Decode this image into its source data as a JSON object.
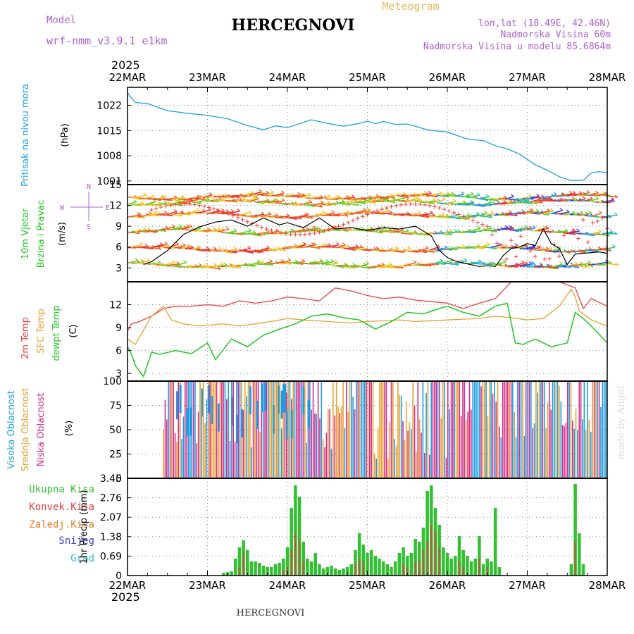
{
  "header": {
    "model_label": "Model",
    "model_name": "wrf-nmm_v3.9.1 e1km",
    "title": "HERCEGNOVI",
    "subtitle": "Meteogram",
    "lonlat": "lon,lat (18.49E, 42.46N)",
    "elevation": "Nadmorska Visina 60m",
    "model_elevation": "Nadmorska Visina u modelu 85.6864m",
    "watermark": "made by Angel",
    "footer": "HERCEGNOVI"
  },
  "time_axis": {
    "year": "2025",
    "labels": [
      "22MAR",
      "23MAR",
      "24MAR",
      "25MAR",
      "26MAR",
      "27MAR",
      "28MAR"
    ]
  },
  "colors": {
    "pressure": "#1ea0e6",
    "t2m": "#f04040",
    "sfc": "#e8a030",
    "dewpt": "#22c822",
    "wind_speed": "#000000",
    "wind_dir": "#f04040",
    "cloud_high": "#1e9be0",
    "cloud_mid": "#e8a030",
    "cloud_low": "#d0308a",
    "precip_total": "#33c033",
    "precip_conv": "#e04040",
    "precip_snow": "#4040e0",
    "precip_hail": "#30c0c0"
  },
  "chart_data": [
    {
      "type": "line",
      "panel": "pressure",
      "ylabel": [
        "Pritisak na nivou mora",
        "(hPa)"
      ],
      "yticks": [
        1001,
        1008,
        1015,
        1022
      ],
      "ylim": [
        1000,
        1027
      ],
      "series": [
        {
          "x": [
            0,
            0.05,
            0.1,
            0.25,
            0.5,
            0.75,
            1.0,
            1.25,
            1.5,
            1.7,
            1.85,
            2.0,
            2.15,
            2.3,
            2.5,
            2.7,
            2.9,
            3.0,
            3.1,
            3.2,
            3.35,
            3.5,
            3.6,
            3.75,
            3.9,
            4.0,
            4.1,
            4.2,
            4.3,
            4.45,
            4.6,
            4.75,
            4.9,
            5.0,
            5.1,
            5.25,
            5.4,
            5.55,
            5.7,
            5.8,
            5.9,
            6.0
          ],
          "values": [
            1025.5,
            1024,
            1022.8,
            1022.5,
            1020.5,
            1019.8,
            1019.2,
            1018.3,
            1016.4,
            1015.2,
            1016.3,
            1015.8,
            1016.9,
            1018,
            1017,
            1016.2,
            1017,
            1017.6,
            1016.9,
            1017.5,
            1016.7,
            1016.8,
            1016.2,
            1015.2,
            1014.8,
            1014.6,
            1013.8,
            1013,
            1012.5,
            1012.2,
            1010.8,
            1009.9,
            1008.5,
            1007,
            1005.5,
            1004,
            1002.2,
            1001.1,
            1001.2,
            1003.2,
            1003.6,
            1003.3
          ]
        }
      ]
    },
    {
      "type": "line",
      "panel": "wind",
      "ylabel": [
        "10m Vjetar",
        "Brzina i Pravac",
        "(m/s)"
      ],
      "direction_legend": [
        "N",
        "E",
        "S",
        "W"
      ],
      "yticks": [
        3,
        6,
        9,
        12,
        15
      ],
      "ylim": [
        1,
        15
      ],
      "series": [
        {
          "name": "speed",
          "x": [
            0.2,
            0.3,
            0.5,
            0.7,
            0.9,
            1.1,
            1.3,
            1.5,
            1.7,
            1.9,
            2.0,
            2.2,
            2.4,
            2.6,
            2.8,
            3.0,
            3.2,
            3.4,
            3.6,
            3.8,
            3.9,
            4.0,
            4.1,
            4.2,
            4.4,
            4.5,
            4.6,
            4.7,
            4.8,
            4.9,
            5.0,
            5.1,
            5.2,
            5.3,
            5.4,
            5.5,
            5.6,
            5.7,
            5.8,
            5.9,
            6.0
          ],
          "values": [
            3.5,
            3.9,
            5.5,
            7.8,
            8.9,
            9.6,
            9.9,
            9.0,
            10.2,
            9.2,
            9.5,
            8.8,
            10.2,
            8.6,
            8.8,
            8.4,
            8.8,
            8.6,
            9.0,
            7.6,
            5.5,
            4.5,
            4.0,
            3.7,
            3.2,
            3.3,
            3.2,
            4.8,
            5.8,
            6.0,
            6.5,
            6.2,
            8.6,
            6.5,
            5.8,
            3.5,
            5.0,
            5.1,
            5.2,
            5.3,
            5.1
          ]
        }
      ]
    },
    {
      "type": "line",
      "panel": "temperature",
      "ylabel": [
        "2m Temp",
        "SFC Temp",
        "dewpt Temp",
        "(C)"
      ],
      "yticks": [
        3,
        6,
        9,
        12
      ],
      "ylim": [
        2,
        15
      ],
      "series": [
        {
          "name": "2m Temp",
          "x": [
            0,
            0.05,
            0.15,
            0.3,
            0.45,
            0.6,
            0.8,
            1.0,
            1.2,
            1.4,
            1.6,
            1.8,
            2.0,
            2.2,
            2.4,
            2.6,
            2.8,
            3.0,
            3.2,
            3.4,
            3.6,
            3.8,
            4.0,
            4.2,
            4.4,
            4.6,
            4.8,
            5.0,
            5.2,
            5.4,
            5.6,
            5.7,
            5.8,
            5.9,
            6.0
          ],
          "values": [
            8.5,
            9.5,
            9.8,
            10.5,
            11.5,
            11.8,
            11.8,
            12.0,
            11.8,
            12.5,
            12.2,
            12.5,
            13.0,
            12.8,
            12.5,
            14.2,
            13.8,
            13.2,
            12.8,
            13.0,
            12.6,
            12.4,
            12.2,
            11.5,
            12.2,
            12.8,
            15.0,
            15.0,
            15.0,
            15.0,
            14.2,
            11.5,
            12.8,
            12.3,
            11.8
          ]
        },
        {
          "name": "SFC Temp",
          "x": [
            0,
            0.1,
            0.3,
            0.45,
            0.55,
            0.7,
            0.9,
            1.2,
            1.4,
            1.6,
            1.8,
            2.0,
            2.2,
            2.5,
            2.8,
            3.0,
            3.2,
            3.4,
            3.6,
            3.8,
            4.0,
            4.2,
            4.4,
            4.6,
            4.8,
            5.0,
            5.2,
            5.4,
            5.55,
            5.6,
            5.65,
            5.8,
            6.0
          ],
          "values": [
            7.5,
            6.8,
            10.5,
            11.8,
            10.0,
            9.5,
            9.2,
            9.5,
            9.2,
            9.5,
            9.8,
            10.2,
            10.0,
            9.8,
            9.6,
            9.8,
            9.9,
            10.0,
            9.8,
            9.9,
            10.0,
            10.1,
            10.2,
            10.5,
            10.3,
            10.0,
            10.2,
            11.8,
            14.0,
            13.0,
            11.2,
            10.0,
            9.2
          ]
        },
        {
          "name": "dewpt Temp",
          "x": [
            0,
            0.05,
            0.1,
            0.2,
            0.3,
            0.4,
            0.6,
            0.8,
            1.0,
            1.1,
            1.3,
            1.5,
            1.7,
            1.9,
            2.1,
            2.3,
            2.5,
            2.7,
            2.9,
            3.1,
            3.3,
            3.5,
            3.7,
            3.9,
            4.0,
            4.2,
            4.4,
            4.6,
            4.75,
            4.85,
            4.95,
            5.1,
            5.3,
            5.5,
            5.6,
            5.7,
            5.8,
            6.0
          ],
          "values": [
            6.5,
            5.5,
            4.0,
            2.6,
            5.8,
            5.5,
            6.0,
            5.6,
            7.0,
            4.8,
            7.5,
            6.5,
            8.0,
            8.8,
            9.5,
            10.5,
            10.8,
            10.3,
            10.0,
            8.8,
            9.8,
            11.0,
            10.8,
            11.5,
            11.8,
            11.0,
            10.5,
            11.8,
            12.2,
            7.0,
            6.8,
            7.5,
            6.5,
            7.0,
            11.0,
            10.2,
            9.2,
            7.0
          ]
        }
      ]
    },
    {
      "type": "bar",
      "panel": "cloud",
      "ylabel": [
        "Visoka Oblacnost",
        "Srednja Oblacnost",
        "Niska Oblacnost",
        "(%)"
      ],
      "yticks": [
        0,
        25,
        50,
        75,
        100
      ],
      "ylim": [
        0,
        100
      ]
    },
    {
      "type": "bar",
      "panel": "precip",
      "ylabel": [
        "1hr Precip (mm)"
      ],
      "legend": [
        "Ukupna Kisa",
        "Konvek.Kisa",
        "Zaledj.Kisa",
        "Snijeg",
        "Grad"
      ],
      "yticks": [
        0,
        0.69,
        1.38,
        2.07,
        2.76,
        3.45
      ],
      "ylim": [
        0,
        3.45
      ],
      "series": [
        {
          "name": "Ukupna Kisa",
          "x": [
            1.2,
            1.25,
            1.3,
            1.35,
            1.4,
            1.45,
            1.5,
            1.55,
            1.6,
            1.65,
            1.7,
            1.75,
            1.8,
            1.85,
            1.9,
            1.95,
            2.0,
            2.05,
            2.1,
            2.15,
            2.2,
            2.25,
            2.3,
            2.35,
            2.4,
            2.45,
            2.5,
            2.55,
            2.6,
            2.65,
            2.7,
            2.75,
            2.8,
            2.85,
            2.9,
            2.95,
            3.0,
            3.05,
            3.1,
            3.15,
            3.2,
            3.25,
            3.3,
            3.35,
            3.4,
            3.45,
            3.5,
            3.55,
            3.6,
            3.65,
            3.7,
            3.75,
            3.8,
            3.85,
            3.9,
            3.95,
            4.0,
            4.05,
            4.1,
            4.15,
            4.2,
            4.25,
            4.3,
            4.35,
            4.4,
            4.45,
            4.5,
            4.55,
            4.6,
            4.65,
            5.55,
            5.6,
            5.65,
            5.7
          ],
          "values": [
            0.1,
            0.12,
            0.15,
            0.6,
            1.0,
            1.25,
            0.9,
            0.5,
            0.5,
            0.45,
            0.35,
            0.3,
            0.3,
            0.4,
            0.45,
            0.6,
            1.0,
            2.4,
            3.2,
            2.8,
            1.2,
            0.6,
            0.5,
            0.8,
            0.4,
            0.25,
            0.3,
            0.35,
            0.25,
            0.2,
            0.25,
            0.3,
            0.4,
            0.9,
            1.5,
            1.1,
            0.8,
            0.9,
            0.7,
            0.6,
            0.5,
            0.4,
            0.3,
            0.5,
            0.8,
            1.0,
            0.7,
            0.8,
            1.3,
            1.2,
            1.7,
            3.0,
            3.2,
            2.4,
            1.8,
            1.0,
            0.8,
            0.6,
            0.7,
            1.4,
            0.9,
            0.7,
            0.5,
            0.6,
            1.4,
            0.4,
            0.6,
            0.5,
            2.4,
            0.3,
            0.4,
            3.25,
            1.5,
            0.4
          ]
        },
        {
          "name": "Konvek.Kisa",
          "x": [
            1.4,
            1.45,
            1.95,
            2.0,
            2.05,
            2.1,
            2.15,
            2.2,
            2.85,
            2.9,
            2.95,
            3.45,
            3.5,
            3.6,
            3.65,
            3.7,
            3.75,
            3.8,
            3.85,
            3.9,
            4.15,
            4.2,
            4.4,
            4.5,
            5.6
          ],
          "values": [
            0.3,
            0.8,
            0.2,
            0.3,
            0.9,
            1.5,
            1.3,
            0.5,
            0.4,
            0.6,
            0.5,
            0.4,
            0.3,
            0.5,
            0.5,
            0.9,
            1.2,
            1.8,
            1.6,
            1.0,
            0.5,
            0.3,
            0.6,
            0.3,
            1.2
          ]
        }
      ]
    }
  ]
}
